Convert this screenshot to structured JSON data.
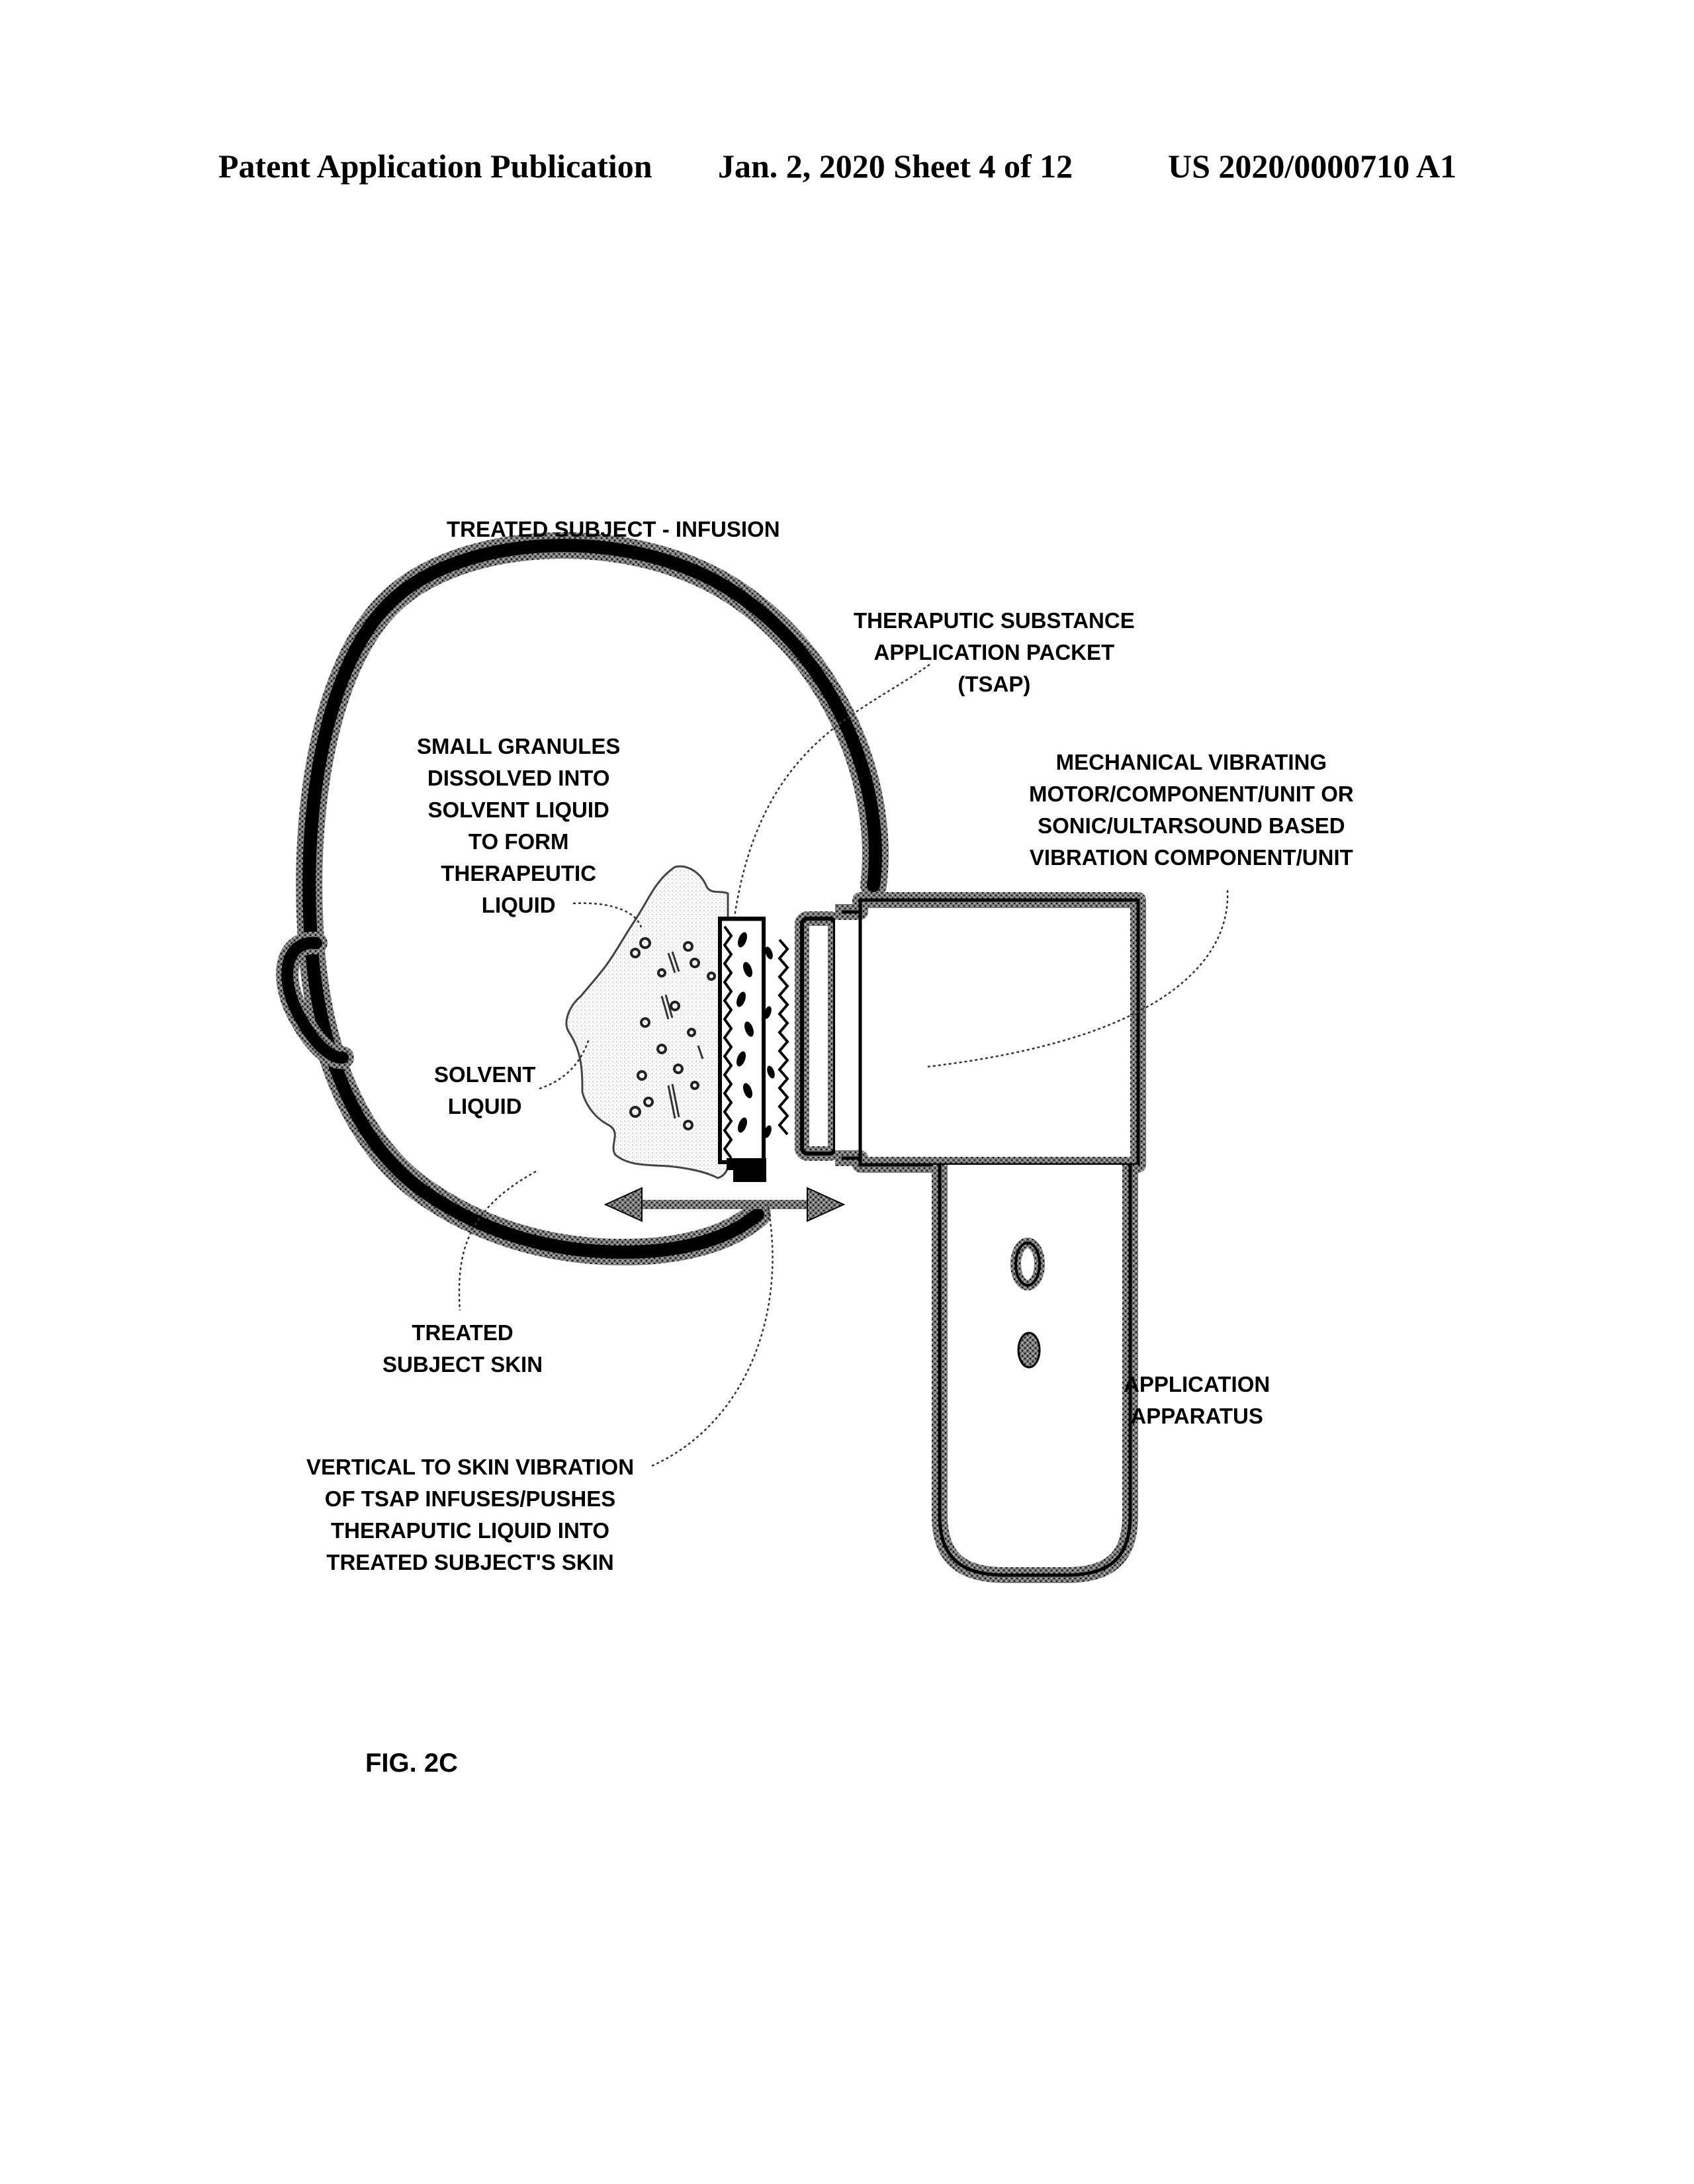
{
  "header": {
    "left": "Patent Application Publication",
    "middle": "Jan. 2, 2020   Sheet 4 of 12",
    "right": "US 2020/0000710 A1"
  },
  "labels": {
    "treated_subject_infusion": "TREATED SUBJECT - INFUSION",
    "tsap": [
      "THERAPUTIC SUBSTANCE",
      "APPLICATION PACKET",
      "(TSAP)"
    ],
    "granules": [
      "SMALL GRANULES",
      "DISSOLVED INTO",
      "SOLVENT LIQUID",
      "TO FORM",
      "THERAPEUTIC",
      "LIQUID"
    ],
    "motor": [
      "MECHANICAL VIBRATING",
      "MOTOR/COMPONENT/UNIT OR",
      "SONIC/ULTARSOUND BASED",
      "VIBRATION COMPONENT/UNIT"
    ],
    "solvent": [
      "SOLVENT",
      "LIQUID"
    ],
    "skin": [
      "TREATED",
      "SUBJECT SKIN"
    ],
    "apparatus": [
      "APPLICATION",
      "APPARATUS"
    ],
    "vibration": [
      "VERTICAL TO SKIN VIBRATION",
      "OF TSAP INFUSES/PUSHES",
      "THERAPUTIC LIQUID INTO",
      "TREATED SUBJECT'S SKIN"
    ]
  },
  "figure_label": "FIG. 2C",
  "colors": {
    "ink": "#000000",
    "stipple": "#6a6a6a",
    "liquid": "#d4d4d4"
  }
}
